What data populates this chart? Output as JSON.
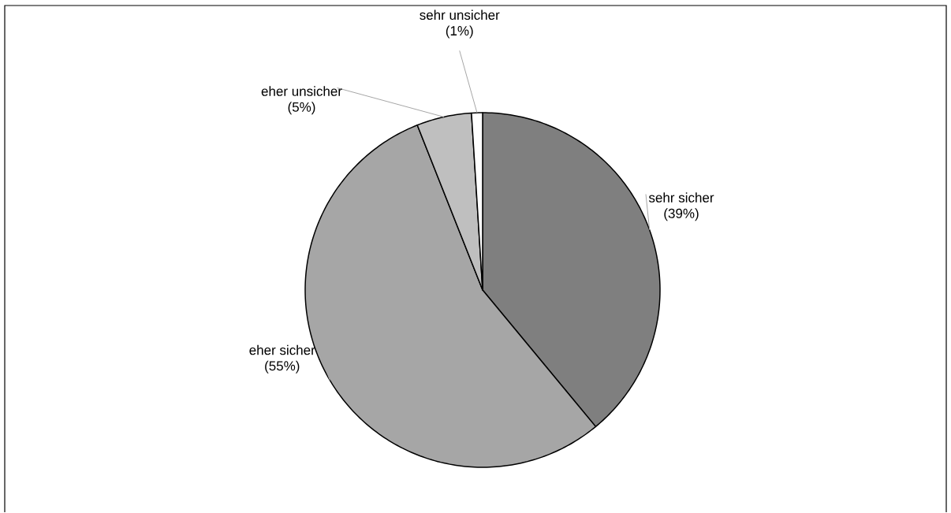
{
  "chart_data": {
    "type": "pie",
    "categories": [
      "sehr sicher",
      "eher sicher",
      "eher unsicher",
      "sehr unsicher"
    ],
    "values": [
      39,
      55,
      5,
      1
    ],
    "value_labels": [
      "(39%)",
      "(55%)",
      "(5%)",
      "(1%)"
    ],
    "colors": [
      "#7f7f7f",
      "#a6a6a6",
      "#bfbfbf",
      "#ffffff"
    ]
  }
}
